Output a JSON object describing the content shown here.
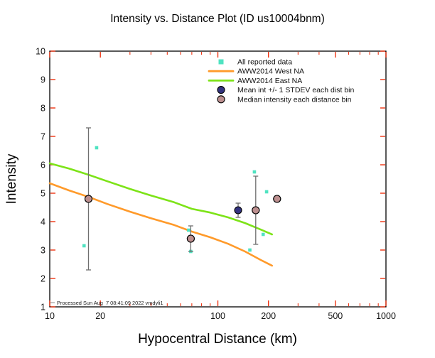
{
  "chart_data": {
    "type": "scatter",
    "title": "Intensity vs. Distance Plot (ID us10004bnm)",
    "xlabel": "Hypocentral Distance (km)",
    "ylabel": "Intensity",
    "footer": "Processed Sun Aug  7 08:41:09 2022 vmdyli1",
    "x_axis": {
      "scale": "log",
      "lim": [
        10,
        1000
      ],
      "major_ticks": [
        10,
        20,
        100,
        200,
        500,
        1000
      ],
      "minor_ticks": [
        30,
        40,
        50,
        60,
        70,
        80,
        90,
        300,
        400,
        600,
        700,
        800,
        900
      ]
    },
    "y_axis": {
      "scale": "linear",
      "lim": [
        1,
        10
      ],
      "ticks": [
        1,
        2,
        3,
        4,
        5,
        6,
        7,
        8,
        9,
        10
      ]
    },
    "colors": {
      "frame": "#000000",
      "tick": "#ee3311",
      "scatter": "#4fe3c1",
      "west_line": "#ff9a2a",
      "east_line": "#7de318",
      "mean_fill": "#33337f",
      "median_fill": "#bc8f8f",
      "errorbar": "#6f6f6f",
      "marker_edge": "#000000"
    },
    "series": {
      "all_reported": {
        "label": "All reported data",
        "marker": "square",
        "color": "#4fe3c1",
        "points": [
          [
            16,
            3.15
          ],
          [
            19,
            6.6
          ],
          [
            67,
            3.7
          ],
          [
            69,
            2.95
          ],
          [
            155,
            3.0
          ],
          [
            165,
            5.75
          ],
          [
            186,
            3.55
          ],
          [
            195,
            5.05
          ]
        ]
      },
      "west_na": {
        "label": "AWW2014 West NA",
        "color": "#ff9a2a",
        "x": [
          10,
          13,
          17,
          22,
          30,
          40,
          55,
          70,
          90,
          115,
          145,
          180,
          210
        ],
        "y": [
          5.35,
          5.1,
          4.87,
          4.62,
          4.35,
          4.12,
          3.88,
          3.65,
          3.45,
          3.22,
          2.95,
          2.65,
          2.45
        ]
      },
      "east_na": {
        "label": "AWW2014 East NA",
        "color": "#7de318",
        "x": [
          10,
          13,
          17,
          22,
          30,
          40,
          55,
          70,
          90,
          115,
          145,
          180,
          210
        ],
        "y": [
          6.05,
          5.87,
          5.65,
          5.42,
          5.15,
          4.92,
          4.68,
          4.45,
          4.32,
          4.15,
          3.95,
          3.72,
          3.55
        ]
      },
      "mean_bins": {
        "label": "Mean int +/- 1 STDEV each dist bin",
        "color": "#33337f",
        "bins": [
          {
            "dist": 17,
            "mean": 4.8,
            "stdev": 2.5
          },
          {
            "dist": 69,
            "mean": 3.4,
            "stdev": 0.45
          },
          {
            "dist": 132,
            "mean": 4.4,
            "stdev": 0.25
          },
          {
            "dist": 168,
            "mean": 4.4,
            "stdev": 1.2
          },
          {
            "dist": 225,
            "mean": 4.8,
            "stdev": 0.1
          }
        ]
      },
      "median_bins": {
        "label": "Median intensity each distance bin",
        "color": "#bc8f8f",
        "bins": [
          {
            "dist": 17,
            "median": 4.8
          },
          {
            "dist": 69,
            "median": 3.4
          },
          {
            "dist": 168,
            "median": 4.4
          },
          {
            "dist": 225,
            "median": 4.8
          }
        ]
      }
    },
    "legend": {
      "position": "top-inside",
      "items": [
        {
          "label": "All reported data",
          "type": "square",
          "color": "#4fe3c1"
        },
        {
          "label": "AWW2014 West NA",
          "type": "line",
          "color": "#ff9a2a"
        },
        {
          "label": "AWW2014 East NA",
          "type": "line",
          "color": "#7de318"
        },
        {
          "label": "Mean int +/- 1 STDEV each dist bin",
          "type": "circle",
          "color": "#33337f"
        },
        {
          "label": "Median intensity each distance bin",
          "type": "circle",
          "color": "#bc8f8f"
        }
      ]
    }
  }
}
